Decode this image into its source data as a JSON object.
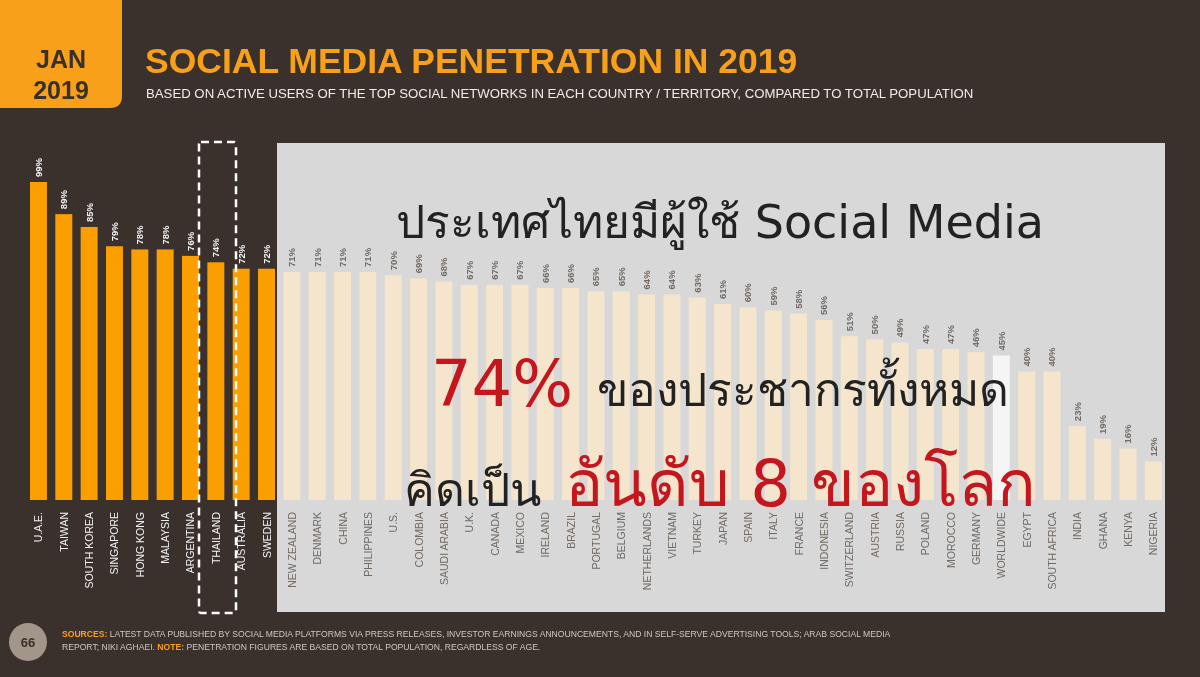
{
  "chart_data": {
    "type": "bar",
    "title": "SOCIAL MEDIA PENETRATION IN 2019",
    "subtitle": "BASED ON ACTIVE USERS OF THE TOP SOCIAL NETWORKS IN EACH COUNTRY / TERRITORY, COMPARED TO TOTAL POPULATION",
    "categories": [
      "U.A.E.",
      "TAIWAN",
      "SOUTH KOREA",
      "SINGAPORE",
      "HONG KONG",
      "MALAYSIA",
      "ARGENTINA",
      "THAILAND",
      "AUSTRALIA",
      "SWEDEN",
      "NEW ZEALAND",
      "DENMARK",
      "CHINA",
      "PHILIPPINES",
      "U.S.",
      "COLOMBIA",
      "SAUDI ARABIA",
      "U.K.",
      "CANADA",
      "MEXICO",
      "IRELAND",
      "BRAZIL",
      "PORTUGAL",
      "BELGIUM",
      "NETHERLANDS",
      "VIETNAM",
      "TURKEY",
      "JAPAN",
      "SPAIN",
      "ITALY",
      "FRANCE",
      "INDONESIA",
      "SWITZERLAND",
      "AUSTRIA",
      "RUSSIA",
      "POLAND",
      "MOROCCO",
      "GERMANY",
      "WORLDWIDE",
      "EGYPT",
      "SOUTH AFRICA",
      "INDIA",
      "GHANA",
      "KENYA",
      "NIGERIA"
    ],
    "values": [
      99,
      89,
      85,
      79,
      78,
      78,
      76,
      74,
      72,
      72,
      71,
      71,
      71,
      71,
      70,
      69,
      68,
      67,
      67,
      67,
      66,
      66,
      65,
      65,
      64,
      64,
      63,
      61,
      60,
      59,
      58,
      56,
      51,
      50,
      49,
      47,
      47,
      46,
      45,
      40,
      40,
      23,
      19,
      16,
      12
    ],
    "value_labels": [
      "99%",
      "89%",
      "85%",
      "79%",
      "78%",
      "78%",
      "76%",
      "74%",
      "72%",
      "72%",
      "71%",
      "71%",
      "71%",
      "71%",
      "70%",
      "69%",
      "68%",
      "67%",
      "67%",
      "67%",
      "66%",
      "66%",
      "65%",
      "65%",
      "64%",
      "64%",
      "63%",
      "61%",
      "60%",
      "59%",
      "58%",
      "56%",
      "51%",
      "50%",
      "49%",
      "47%",
      "47%",
      "46%",
      "45%",
      "40%",
      "40%",
      "23%",
      "19%",
      "16%",
      "12%"
    ],
    "colors": [
      "#fb9e00",
      "#fb9e00",
      "#fb9e00",
      "#fb9e00",
      "#fb9e00",
      "#fb9e00",
      "#fb9e00",
      "#fb9e00",
      "#fb9e00",
      "#fb9e00",
      "#f4e5cc",
      "#f4e5cc",
      "#f4e5cc",
      "#f4e5cc",
      "#f4e5cc",
      "#f4e5cc",
      "#f4e5cc",
      "#f4e5cc",
      "#f4e5cc",
      "#f4e5cc",
      "#f4e5cc",
      "#f4e5cc",
      "#f4e5cc",
      "#f4e5cc",
      "#f4e5cc",
      "#f4e5cc",
      "#f4e5cc",
      "#f4e5cc",
      "#f4e5cc",
      "#f4e5cc",
      "#f4e5cc",
      "#f4e5cc",
      "#f4e5cc",
      "#f4e5cc",
      "#f4e5cc",
      "#f4e5cc",
      "#f4e5cc",
      "#f4e5cc",
      "#f5f5f5",
      "#f4e5cc",
      "#f4e5cc",
      "#f4e5cc",
      "#f4e5cc",
      "#f4e5cc",
      "#f4e5cc"
    ],
    "annotations": [
      "JAN\n2019",
      "ประเทศไทยมีผู้ใช้ Social Media",
      "74%",
      "ของประชากรทั้งหมด",
      "คิดเป็น",
      "อันดับ 8 ของโลก",
      "SOURCES: LATEST DATA PUBLISHED BY SOCIAL MEDIA PLATFORMS VIA PRESS RELEASES, INVESTOR EARNINGS ANNOUNCEMENTS, AND IN SELF-SERVE ADVERTISING TOOLS; ARAB SOCIAL MEDIA REPORT; NIKI AGHAEI.",
      "NOTE: PENETRATION FIGURES ARE BASED ON TOTAL POPULATION, REGARDLESS OF AGE.",
      "66"
    ]
  }
}
